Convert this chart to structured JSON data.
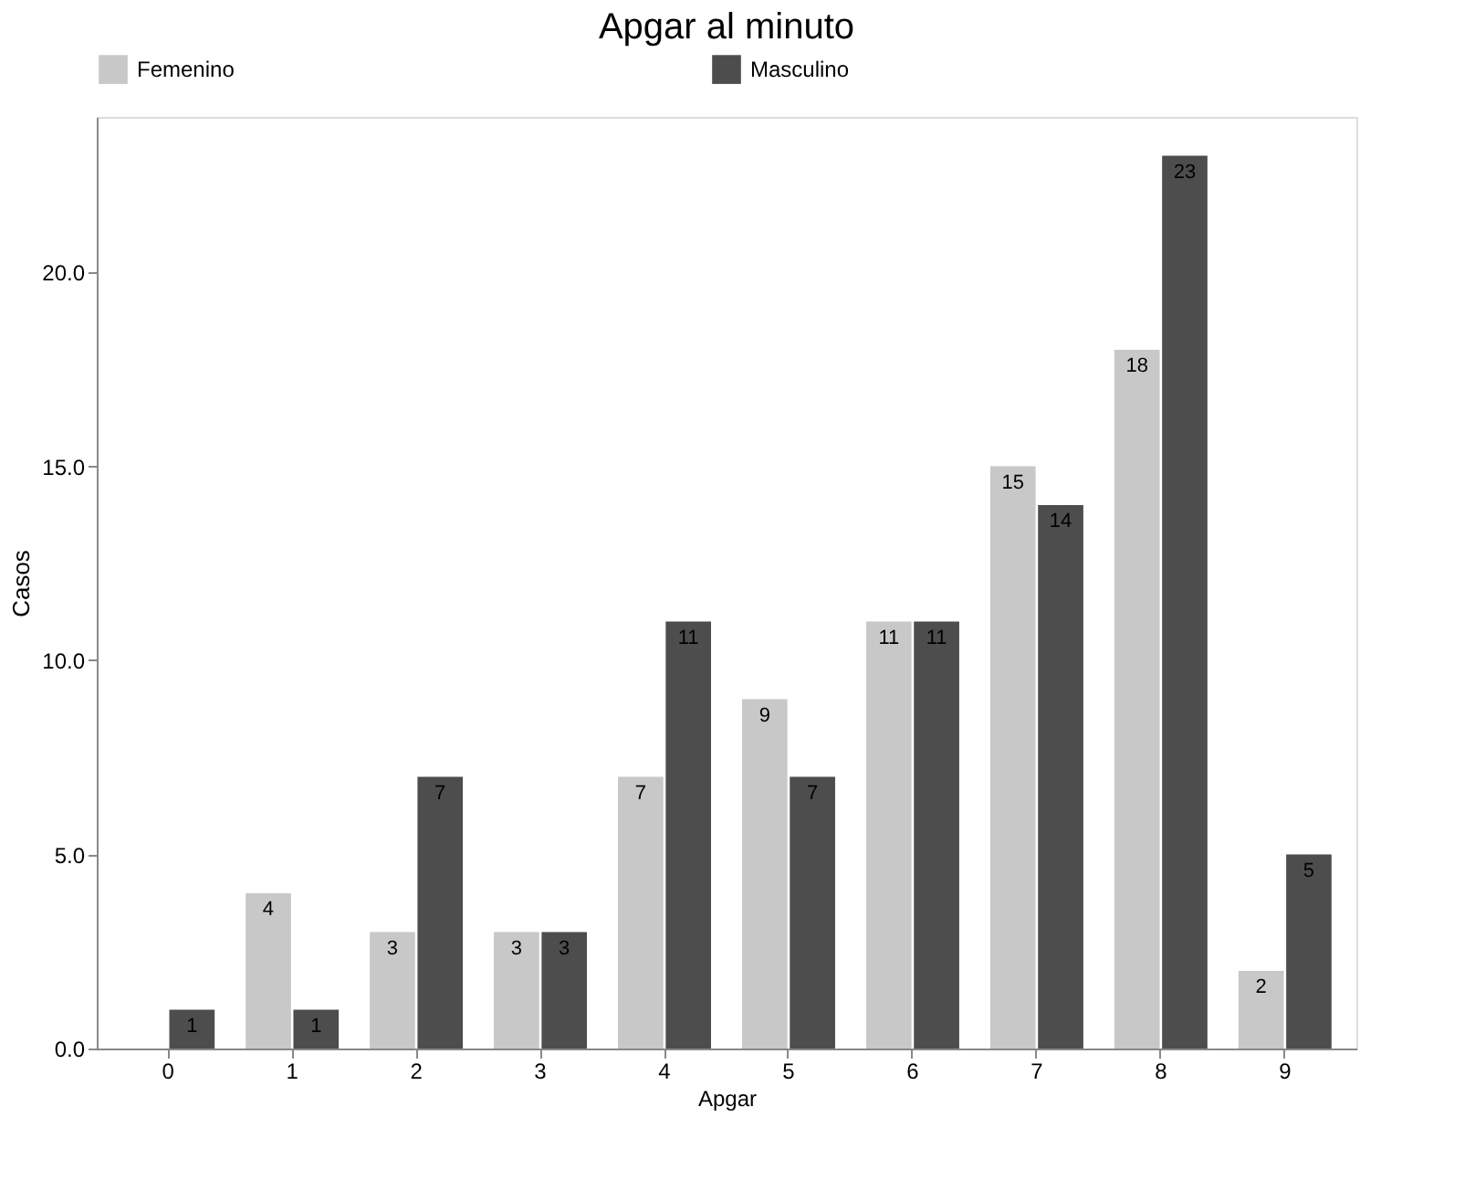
{
  "chart_data": {
    "type": "bar",
    "title": "Apgar al minuto",
    "xlabel": "Apgar",
    "ylabel": "Casos",
    "categories": [
      "0",
      "1",
      "2",
      "3",
      "4",
      "5",
      "6",
      "7",
      "8",
      "9"
    ],
    "series": [
      {
        "name": "Femenino",
        "color": "#c8c8c8",
        "values": [
          null,
          4,
          3,
          3,
          7,
          9,
          11,
          15,
          18,
          2
        ]
      },
      {
        "name": "Masculino",
        "color": "#4d4d4d",
        "values": [
          1,
          1,
          7,
          3,
          11,
          7,
          11,
          14,
          23,
          5
        ]
      }
    ],
    "ylim": [
      0,
      24
    ],
    "yticks": [
      {
        "value": 0,
        "label": "0.0"
      },
      {
        "value": 5,
        "label": "5.0"
      },
      {
        "value": 10,
        "label": "10.0"
      },
      {
        "value": 15,
        "label": "15.0"
      },
      {
        "value": 20,
        "label": "20.0"
      }
    ],
    "data_labels": true,
    "grid": false,
    "legend": "top"
  }
}
